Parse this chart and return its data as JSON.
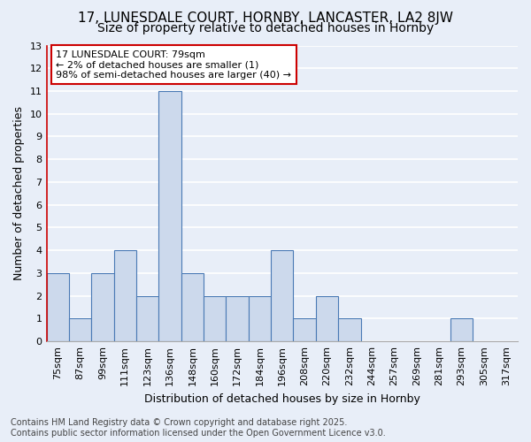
{
  "title1": "17, LUNESDALE COURT, HORNBY, LANCASTER, LA2 8JW",
  "title2": "Size of property relative to detached houses in Hornby",
  "xlabel": "Distribution of detached houses by size in Hornby",
  "ylabel": "Number of detached properties",
  "footer": "Contains HM Land Registry data © Crown copyright and database right 2025.\nContains public sector information licensed under the Open Government Licence v3.0.",
  "annotation_line1": "17 LUNESDALE COURT: 79sqm",
  "annotation_line2": "← 2% of detached houses are smaller (1)",
  "annotation_line3": "98% of semi-detached houses are larger (40) →",
  "bins": [
    "75sqm",
    "87sqm",
    "99sqm",
    "111sqm",
    "123sqm",
    "136sqm",
    "148sqm",
    "160sqm",
    "172sqm",
    "184sqm",
    "196sqm",
    "208sqm",
    "220sqm",
    "232sqm",
    "244sqm",
    "257sqm",
    "269sqm",
    "281sqm",
    "293sqm",
    "305sqm",
    "317sqm"
  ],
  "values": [
    3,
    1,
    3,
    4,
    2,
    11,
    3,
    2,
    2,
    2,
    4,
    1,
    2,
    1,
    0,
    0,
    0,
    0,
    1,
    0,
    0
  ],
  "highlight_bin_index": 0,
  "bar_color": "#ccd9ec",
  "bar_edge_color": "#4a7ab5",
  "highlight_bar_color": "#ff9999",
  "bg_color": "#e8eef8",
  "grid_color": "#ffffff",
  "left_spine_color": "#cc0000",
  "ylim": [
    0,
    13
  ],
  "yticks": [
    0,
    1,
    2,
    3,
    4,
    5,
    6,
    7,
    8,
    9,
    10,
    11,
    12,
    13
  ],
  "annotation_box_facecolor": "#ffffff",
  "annotation_box_edgecolor": "#cc0000",
  "title_fontsize": 11,
  "subtitle_fontsize": 10,
  "axis_label_fontsize": 9,
  "tick_fontsize": 8,
  "annotation_fontsize": 8,
  "footer_fontsize": 7
}
